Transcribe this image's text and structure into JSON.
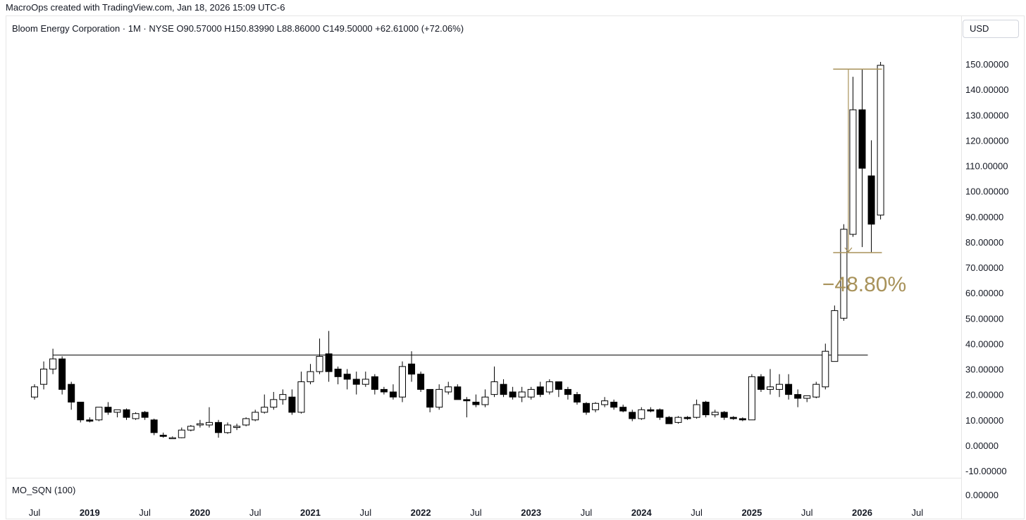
{
  "header": {
    "credit": "MacroOps created with TradingView.com, Jan 18, 2026 15:09 UTC-6",
    "legend": "Bloom Energy Corporation · 1M · NYSE  O90.57000  H150.83990  L88.86000  C149.50000  +62.61000 (+72.06%)"
  },
  "currency_button": "USD",
  "indicator": {
    "label": "MO_SQN (100)",
    "value": "0.00000"
  },
  "colors": {
    "up_fill": "#ffffff",
    "down_fill": "#000000",
    "candle_outline": "#000000",
    "measure": "#a8925a",
    "hline": "#000000"
  },
  "chart_data": {
    "type": "candlestick",
    "title": "Bloom Energy Corporation · 1M · NYSE",
    "y_axis": {
      "min": -10,
      "max": 150,
      "ticks": [
        "150.00000",
        "140.00000",
        "130.00000",
        "120.00000",
        "110.00000",
        "100.00000",
        "90.00000",
        "80.00000",
        "70.00000",
        "60.00000",
        "50.00000",
        "40.00000",
        "30.00000",
        "20.00000",
        "10.00000",
        "0.00000",
        "-10.00000"
      ]
    },
    "x_axis": {
      "ticks": [
        {
          "label": "Jul",
          "date": "2018-07",
          "bold": false
        },
        {
          "label": "2019",
          "date": "2019-01",
          "bold": true
        },
        {
          "label": "Jul",
          "date": "2019-07",
          "bold": false
        },
        {
          "label": "2020",
          "date": "2020-01",
          "bold": true
        },
        {
          "label": "Jul",
          "date": "2020-07",
          "bold": false
        },
        {
          "label": "2021",
          "date": "2021-01",
          "bold": true
        },
        {
          "label": "Jul",
          "date": "2021-07",
          "bold": false
        },
        {
          "label": "2022",
          "date": "2022-01",
          "bold": true
        },
        {
          "label": "Jul",
          "date": "2022-07",
          "bold": false
        },
        {
          "label": "2023",
          "date": "2023-01",
          "bold": true
        },
        {
          "label": "Jul",
          "date": "2023-07",
          "bold": false
        },
        {
          "label": "2024",
          "date": "2024-01",
          "bold": true
        },
        {
          "label": "Jul",
          "date": "2024-07",
          "bold": false
        },
        {
          "label": "2025",
          "date": "2025-01",
          "bold": true
        },
        {
          "label": "Jul",
          "date": "2025-07",
          "bold": false
        },
        {
          "label": "2026",
          "date": "2026-01",
          "bold": true
        },
        {
          "label": "Jul",
          "date": "2026-07",
          "bold": false
        }
      ]
    },
    "horizontal_line": {
      "price": 35.5,
      "from": "2018-09",
      "to": "2026-01"
    },
    "measure": {
      "text": "−48.80%",
      "from_price": 148,
      "to_price": 75.8,
      "from": "2025-10",
      "to": "2026-01"
    },
    "candles": [
      {
        "date": "2018-07",
        "o": 19,
        "h": 24,
        "l": 18,
        "c": 23
      },
      {
        "date": "2018-08",
        "o": 24,
        "h": 33,
        "l": 22,
        "c": 30
      },
      {
        "date": "2018-09",
        "o": 30,
        "h": 38,
        "l": 28,
        "c": 34
      },
      {
        "date": "2018-10",
        "o": 34,
        "h": 35,
        "l": 20,
        "c": 22
      },
      {
        "date": "2018-11",
        "o": 24,
        "h": 25,
        "l": 14,
        "c": 17
      },
      {
        "date": "2018-12",
        "o": 17,
        "h": 17,
        "l": 9,
        "c": 10
      },
      {
        "date": "2019-01",
        "o": 10,
        "h": 11,
        "l": 9,
        "c": 9.5
      },
      {
        "date": "2019-02",
        "o": 10,
        "h": 15,
        "l": 9.5,
        "c": 15
      },
      {
        "date": "2019-03",
        "o": 15,
        "h": 17,
        "l": 12,
        "c": 13
      },
      {
        "date": "2019-04",
        "o": 13,
        "h": 14,
        "l": 11,
        "c": 14
      },
      {
        "date": "2019-05",
        "o": 14,
        "h": 14.5,
        "l": 10,
        "c": 11
      },
      {
        "date": "2019-06",
        "o": 10.5,
        "h": 13,
        "l": 10,
        "c": 12.5
      },
      {
        "date": "2019-07",
        "o": 13,
        "h": 13.5,
        "l": 10,
        "c": 11
      },
      {
        "date": "2019-08",
        "o": 10,
        "h": 10.5,
        "l": 4,
        "c": 5
      },
      {
        "date": "2019-09",
        "o": 4,
        "h": 5,
        "l": 3,
        "c": 3.5
      },
      {
        "date": "2019-10",
        "o": 3,
        "h": 3.5,
        "l": 2.5,
        "c": 3
      },
      {
        "date": "2019-11",
        "o": 3,
        "h": 7,
        "l": 2.8,
        "c": 6
      },
      {
        "date": "2019-12",
        "o": 6,
        "h": 8,
        "l": 5.5,
        "c": 7.5
      },
      {
        "date": "2020-01",
        "o": 8,
        "h": 10,
        "l": 7,
        "c": 8.5
      },
      {
        "date": "2020-02",
        "o": 8,
        "h": 15,
        "l": 7,
        "c": 9
      },
      {
        "date": "2020-03",
        "o": 9,
        "h": 10,
        "l": 3,
        "c": 5
      },
      {
        "date": "2020-04",
        "o": 5,
        "h": 9,
        "l": 4.5,
        "c": 8
      },
      {
        "date": "2020-05",
        "o": 7,
        "h": 8.5,
        "l": 6,
        "c": 7.5
      },
      {
        "date": "2020-06",
        "o": 8,
        "h": 11,
        "l": 7.5,
        "c": 10.5
      },
      {
        "date": "2020-07",
        "o": 10,
        "h": 14,
        "l": 9.5,
        "c": 13
      },
      {
        "date": "2020-08",
        "o": 13,
        "h": 20,
        "l": 12.5,
        "c": 15
      },
      {
        "date": "2020-09",
        "o": 15,
        "h": 21,
        "l": 14,
        "c": 18
      },
      {
        "date": "2020-10",
        "o": 18,
        "h": 22,
        "l": 16,
        "c": 20
      },
      {
        "date": "2020-11",
        "o": 19,
        "h": 22,
        "l": 12,
        "c": 13
      },
      {
        "date": "2020-12",
        "o": 13,
        "h": 29,
        "l": 12.5,
        "c": 25
      },
      {
        "date": "2021-01",
        "o": 25,
        "h": 32,
        "l": 24,
        "c": 29
      },
      {
        "date": "2021-02",
        "o": 29,
        "h": 42,
        "l": 28,
        "c": 35
      },
      {
        "date": "2021-03",
        "o": 36,
        "h": 45,
        "l": 25,
        "c": 29
      },
      {
        "date": "2021-04",
        "o": 30,
        "h": 31,
        "l": 24,
        "c": 27
      },
      {
        "date": "2021-05",
        "o": 28,
        "h": 30,
        "l": 22,
        "c": 26
      },
      {
        "date": "2021-06",
        "o": 26,
        "h": 29,
        "l": 20,
        "c": 24
      },
      {
        "date": "2021-07",
        "o": 24,
        "h": 29,
        "l": 23,
        "c": 26
      },
      {
        "date": "2021-08",
        "o": 27,
        "h": 28,
        "l": 20,
        "c": 22
      },
      {
        "date": "2021-09",
        "o": 22,
        "h": 23,
        "l": 20,
        "c": 21
      },
      {
        "date": "2021-10",
        "o": 21,
        "h": 24,
        "l": 18,
        "c": 19
      },
      {
        "date": "2021-11",
        "o": 19,
        "h": 33,
        "l": 17,
        "c": 31
      },
      {
        "date": "2021-12",
        "o": 32,
        "h": 37,
        "l": 25,
        "c": 28
      },
      {
        "date": "2022-01",
        "o": 28,
        "h": 29,
        "l": 21,
        "c": 22
      },
      {
        "date": "2022-02",
        "o": 22,
        "h": 22,
        "l": 13,
        "c": 15
      },
      {
        "date": "2022-03",
        "o": 15,
        "h": 24,
        "l": 14,
        "c": 22
      },
      {
        "date": "2022-04",
        "o": 21,
        "h": 25,
        "l": 20,
        "c": 23
      },
      {
        "date": "2022-05",
        "o": 23,
        "h": 24,
        "l": 18,
        "c": 18
      },
      {
        "date": "2022-06",
        "o": 18,
        "h": 19,
        "l": 11,
        "c": 17.5
      },
      {
        "date": "2022-07",
        "o": 17,
        "h": 20,
        "l": 15,
        "c": 16
      },
      {
        "date": "2022-08",
        "o": 16,
        "h": 22,
        "l": 15,
        "c": 19
      },
      {
        "date": "2022-09",
        "o": 20,
        "h": 31,
        "l": 19,
        "c": 25
      },
      {
        "date": "2022-10",
        "o": 24,
        "h": 26,
        "l": 19,
        "c": 20
      },
      {
        "date": "2022-11",
        "o": 21,
        "h": 23,
        "l": 18,
        "c": 19
      },
      {
        "date": "2022-12",
        "o": 19,
        "h": 23,
        "l": 17,
        "c": 21
      },
      {
        "date": "2023-01",
        "o": 19,
        "h": 23,
        "l": 18,
        "c": 22
      },
      {
        "date": "2023-02",
        "o": 23,
        "h": 25,
        "l": 19,
        "c": 20
      },
      {
        "date": "2023-03",
        "o": 21,
        "h": 26,
        "l": 20,
        "c": 25
      },
      {
        "date": "2023-04",
        "o": 25,
        "h": 25,
        "l": 19,
        "c": 22
      },
      {
        "date": "2023-05",
        "o": 22,
        "h": 23,
        "l": 18,
        "c": 20
      },
      {
        "date": "2023-06",
        "o": 20,
        "h": 21,
        "l": 16,
        "c": 17
      },
      {
        "date": "2023-07",
        "o": 16.5,
        "h": 17,
        "l": 12,
        "c": 13
      },
      {
        "date": "2023-08",
        "o": 14,
        "h": 17,
        "l": 13,
        "c": 16.5
      },
      {
        "date": "2023-09",
        "o": 16,
        "h": 19,
        "l": 15,
        "c": 17.5
      },
      {
        "date": "2023-10",
        "o": 17,
        "h": 18,
        "l": 14,
        "c": 15
      },
      {
        "date": "2023-11",
        "o": 15,
        "h": 16,
        "l": 13,
        "c": 13.5
      },
      {
        "date": "2023-12",
        "o": 13,
        "h": 14,
        "l": 9.5,
        "c": 10.5
      },
      {
        "date": "2024-01",
        "o": 10.5,
        "h": 15,
        "l": 10,
        "c": 14
      },
      {
        "date": "2024-02",
        "o": 14,
        "h": 15,
        "l": 13,
        "c": 13.5
      },
      {
        "date": "2024-03",
        "o": 14,
        "h": 14.5,
        "l": 10,
        "c": 11
      },
      {
        "date": "2024-04",
        "o": 11,
        "h": 11.5,
        "l": 8.5,
        "c": 8.5
      },
      {
        "date": "2024-05",
        "o": 9,
        "h": 11.5,
        "l": 8.5,
        "c": 11
      },
      {
        "date": "2024-06",
        "o": 11,
        "h": 11.5,
        "l": 10,
        "c": 10.5
      },
      {
        "date": "2024-07",
        "o": 11,
        "h": 18,
        "l": 10.5,
        "c": 16
      },
      {
        "date": "2024-08",
        "o": 17,
        "h": 17.5,
        "l": 11,
        "c": 12
      },
      {
        "date": "2024-09",
        "o": 12,
        "h": 14,
        "l": 11,
        "c": 13
      },
      {
        "date": "2024-10",
        "o": 13,
        "h": 13.5,
        "l": 10,
        "c": 11
      },
      {
        "date": "2024-11",
        "o": 11,
        "h": 11.5,
        "l": 10,
        "c": 10.5
      },
      {
        "date": "2024-12",
        "o": 10.5,
        "h": 11,
        "l": 9.5,
        "c": 10
      },
      {
        "date": "2025-01",
        "o": 10,
        "h": 28,
        "l": 10,
        "c": 27
      },
      {
        "date": "2025-02",
        "o": 27,
        "h": 28,
        "l": 21,
        "c": 22
      },
      {
        "date": "2025-03",
        "o": 22,
        "h": 30,
        "l": 20,
        "c": 23
      },
      {
        "date": "2025-04",
        "o": 22,
        "h": 28,
        "l": 19,
        "c": 24
      },
      {
        "date": "2025-05",
        "o": 24,
        "h": 28,
        "l": 18,
        "c": 20
      },
      {
        "date": "2025-06",
        "o": 20,
        "h": 22,
        "l": 15,
        "c": 18.5
      },
      {
        "date": "2025-07",
        "o": 18.5,
        "h": 19,
        "l": 17,
        "c": 19.5
      },
      {
        "date": "2025-08",
        "o": 19,
        "h": 25,
        "l": 18.5,
        "c": 24
      },
      {
        "date": "2025-09",
        "o": 23,
        "h": 40,
        "l": 22,
        "c": 37
      },
      {
        "date": "2025-10",
        "o": 33,
        "h": 55,
        "l": 33,
        "c": 53
      },
      {
        "date": "2025-11",
        "o": 50,
        "h": 87,
        "l": 49,
        "c": 85
      },
      {
        "date": "2025-12",
        "o": 83,
        "h": 145,
        "l": 82,
        "c": 132
      },
      {
        "date": "2026-01",
        "o": 132,
        "h": 148,
        "l": 78,
        "c": 109
      },
      {
        "date": "2026-02",
        "o": 106,
        "h": 120,
        "l": 76,
        "c": 87
      },
      {
        "date": "2026-03",
        "o": 90.57,
        "h": 150.84,
        "l": 88.86,
        "c": 149.5
      }
    ]
  }
}
